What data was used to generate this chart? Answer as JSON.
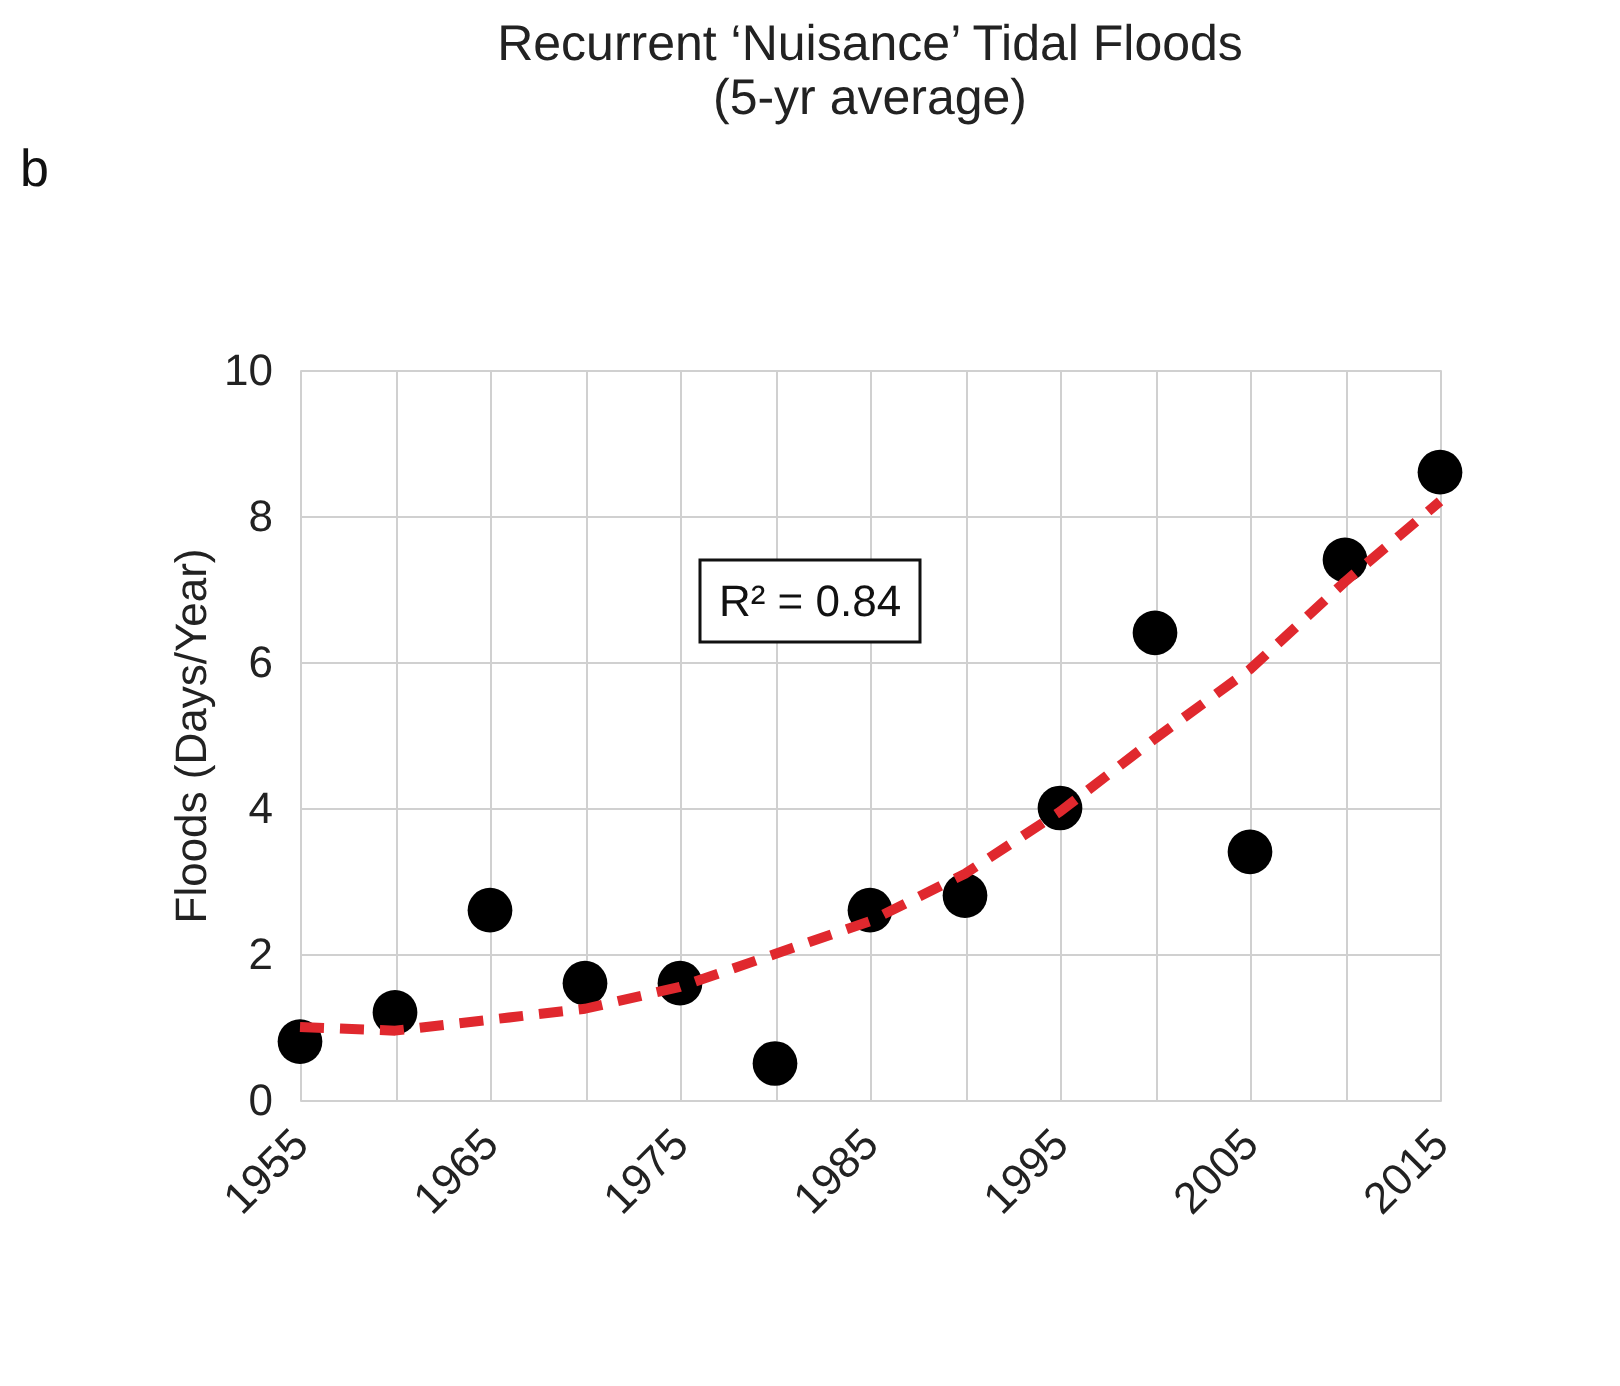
{
  "chart_data": {
    "type": "scatter",
    "title": [
      "Recurrent ‘Nuisance’ Tidal Floods",
      "(5-yr average)"
    ],
    "ylabel": "Floods (Days/Year)",
    "annotations": [
      "b",
      "R² = 0.84"
    ],
    "x": [
      1955,
      1960,
      1965,
      1970,
      1975,
      1980,
      1985,
      1990,
      1995,
      2000,
      2005,
      2010,
      2015
    ],
    "series": [
      {
        "color": "#000000",
        "marker": "circle",
        "values": [
          0.8,
          1.2,
          2.6,
          1.6,
          1.6,
          0.5,
          2.6,
          2.8,
          4.0,
          6.4,
          3.4,
          7.4,
          8.6
        ]
      },
      {
        "type": "line",
        "color": "#e0282e",
        "line_style": "dashed",
        "x": [
          1955,
          1960,
          1965,
          1970,
          1975,
          1980,
          1985,
          1990,
          1995,
          2000,
          2005,
          2010,
          2015
        ],
        "values": [
          1.0,
          0.95,
          1.1,
          1.25,
          1.55,
          2.0,
          2.45,
          3.1,
          3.95,
          4.95,
          5.9,
          7.1,
          8.2
        ]
      }
    ],
    "xlim": [
      1955,
      2015
    ],
    "xticks": [
      1955,
      1965,
      1975,
      1985,
      1995,
      2005,
      2015
    ],
    "ylim": [
      0,
      10
    ],
    "yticks": [
      0,
      2,
      4,
      6,
      8,
      10
    ],
    "grid": true
  }
}
